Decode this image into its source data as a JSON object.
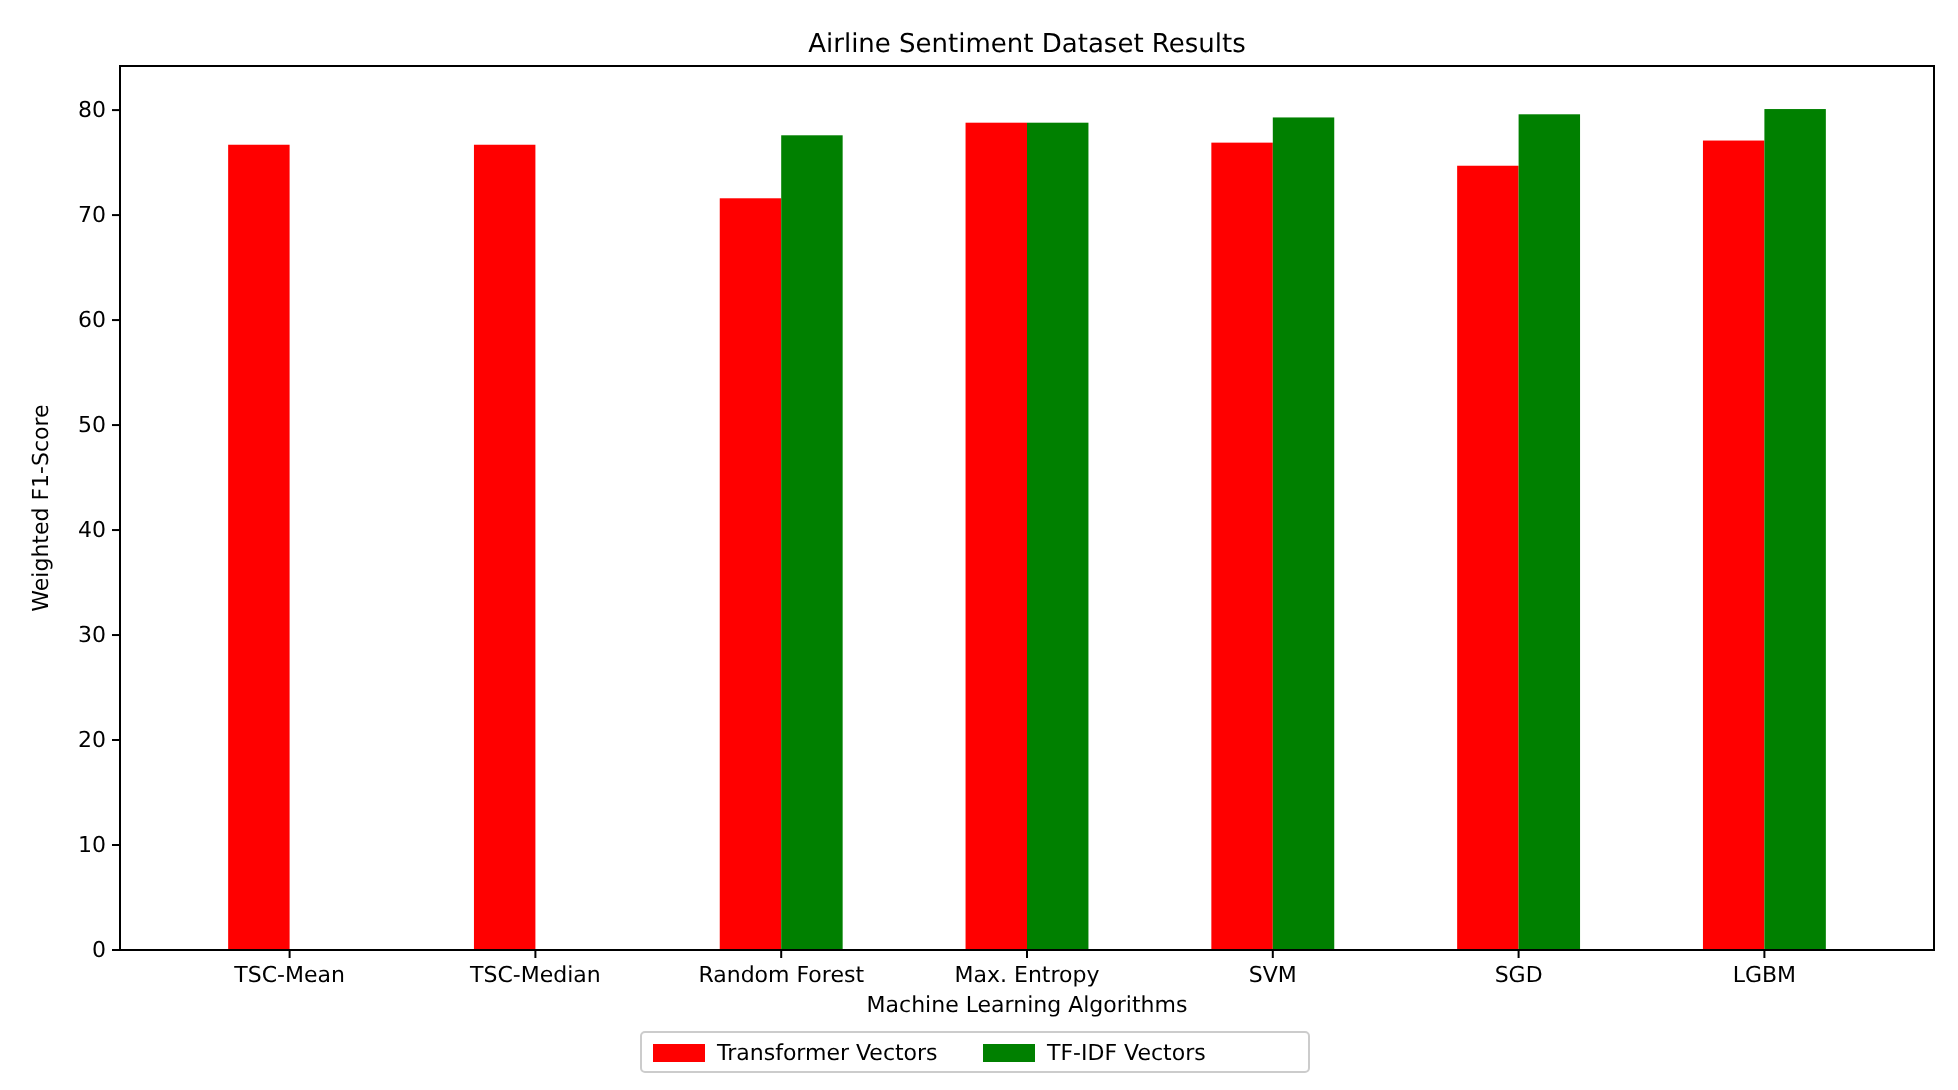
{
  "chart_data": {
    "type": "bar",
    "title": "Airline Sentiment Dataset Results",
    "xlabel": "Machine Learning Algorithms",
    "ylabel": "Weighted F1-Score",
    "categories": [
      "TSC-Mean",
      "TSC-Median",
      "Random Forest",
      "Max. Entropy",
      "SVM",
      "SGD",
      "LGBM"
    ],
    "series": [
      {
        "name": "Transformer Vectors",
        "color": "#ff0000",
        "values": [
          76.7,
          76.7,
          71.6,
          78.8,
          76.9,
          74.7,
          77.1
        ]
      },
      {
        "name": "TF-IDF Vectors",
        "color": "#008000",
        "values": [
          null,
          null,
          77.6,
          78.8,
          79.3,
          79.6,
          80.1
        ]
      }
    ],
    "ylim": [
      0,
      84.2
    ],
    "yticks": [
      0,
      10,
      20,
      30,
      40,
      50,
      60,
      70,
      80
    ],
    "legend": "bottom"
  }
}
